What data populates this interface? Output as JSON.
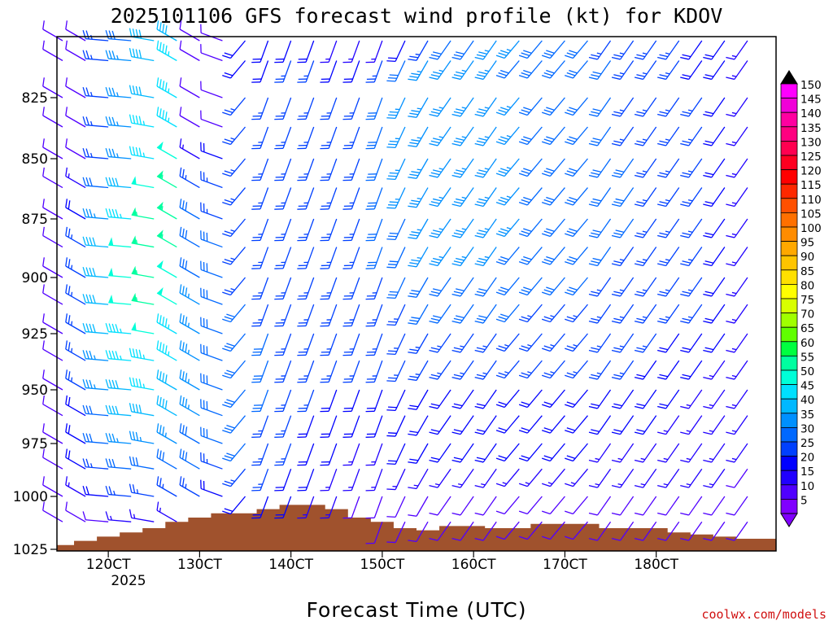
{
  "chart_data": {
    "type": "wind-barb-profile",
    "title": "2025101106 GFS forecast wind profile (kt) for KDOV",
    "xlabel": "Forecast Time (UTC)",
    "credit": "coolwx.com/models",
    "x_tick_labels": [
      "120CT",
      "130CT",
      "140CT",
      "150CT",
      "160CT",
      "170CT",
      "180CT"
    ],
    "x_year_label": "2025",
    "xlim_hours": [
      0,
      186
    ],
    "y_tick_labels": [
      "825",
      "850",
      "875",
      "900",
      "925",
      "950",
      "975",
      "1000",
      "1025"
    ],
    "y_pressure_levels_hPa": [
      805,
      812,
      825,
      837,
      850,
      862,
      875,
      887,
      900,
      912,
      925,
      937,
      950,
      962,
      975,
      987,
      1000,
      1012,
      1025
    ],
    "barb_time_hours": [
      0,
      6,
      12,
      18,
      24,
      30,
      36,
      42,
      48,
      54,
      60,
      66,
      72,
      78,
      84,
      90,
      96,
      102,
      108,
      114,
      120,
      126,
      132,
      138,
      144,
      150,
      156,
      162,
      168,
      174,
      180
    ],
    "time_ticks_hours": [
      12,
      36,
      60,
      84,
      108,
      132,
      156
    ],
    "colorbar": {
      "labels": [
        "150",
        "145",
        "140",
        "135",
        "130",
        "125",
        "120",
        "115",
        "110",
        "105",
        "100",
        "95",
        "90",
        "85",
        "80",
        "75",
        "70",
        "65",
        "60",
        "55",
        "50",
        "45",
        "40",
        "35",
        "30",
        "25",
        "20",
        "15",
        "10",
        "5"
      ],
      "colors": [
        "#ff00ff",
        "#f000d8",
        "#ff00a0",
        "#ff0080",
        "#ff0050",
        "#ff0020",
        "#ff0000",
        "#ff2800",
        "#ff5000",
        "#ff7000",
        "#ff8c00",
        "#ffa800",
        "#ffc400",
        "#ffe000",
        "#ffff00",
        "#d8ff00",
        "#a0ff00",
        "#60ff00",
        "#00ff40",
        "#00ffa0",
        "#00ffd8",
        "#00e0ff",
        "#00b8ff",
        "#0090ff",
        "#0068ff",
        "#0040ff",
        "#0000ff",
        "#2000ff",
        "#5000ff",
        "#8000ff"
      ]
    },
    "terrain_color": "#a0522d",
    "surface_pressure_hPa": [
      1023,
      1021,
      1019,
      1017,
      1015,
      1012,
      1010,
      1008,
      1008,
      1006,
      1004,
      1004,
      1006,
      1010,
      1012,
      1015,
      1016,
      1014,
      1014,
      1015,
      1015,
      1013,
      1013,
      1013,
      1015,
      1015,
      1015,
      1017,
      1018,
      1019,
      1020
    ],
    "wind_speed_kt": [
      [
        10,
        10,
        25,
        30,
        40,
        40,
        10,
        10,
        20,
        20,
        20,
        20,
        15,
        15,
        15,
        20,
        25,
        30,
        30,
        35,
        35,
        30,
        30,
        30,
        25,
        25,
        25,
        25,
        20,
        20,
        15
      ],
      [
        10,
        10,
        25,
        35,
        40,
        45,
        10,
        10,
        20,
        20,
        25,
        25,
        20,
        20,
        25,
        30,
        35,
        35,
        35,
        35,
        30,
        30,
        30,
        30,
        30,
        25,
        25,
        25,
        20,
        20,
        15
      ],
      [
        10,
        10,
        25,
        35,
        40,
        45,
        10,
        10,
        25,
        25,
        25,
        25,
        25,
        25,
        30,
        35,
        35,
        35,
        35,
        35,
        35,
        30,
        30,
        30,
        30,
        25,
        25,
        25,
        25,
        20,
        15
      ],
      [
        10,
        10,
        25,
        35,
        45,
        45,
        10,
        10,
        25,
        25,
        25,
        25,
        25,
        25,
        30,
        35,
        35,
        35,
        35,
        35,
        35,
        30,
        30,
        30,
        30,
        25,
        25,
        25,
        25,
        20,
        15
      ],
      [
        10,
        10,
        25,
        35,
        45,
        50,
        15,
        20,
        25,
        25,
        25,
        25,
        25,
        25,
        30,
        35,
        35,
        35,
        35,
        35,
        35,
        30,
        30,
        30,
        30,
        30,
        25,
        25,
        25,
        20,
        15
      ],
      [
        10,
        15,
        30,
        40,
        50,
        55,
        25,
        25,
        25,
        25,
        25,
        25,
        25,
        25,
        30,
        35,
        35,
        35,
        35,
        35,
        35,
        30,
        30,
        30,
        30,
        30,
        25,
        25,
        25,
        20,
        15
      ],
      [
        10,
        20,
        35,
        45,
        55,
        55,
        30,
        25,
        25,
        25,
        25,
        25,
        25,
        25,
        30,
        30,
        35,
        35,
        35,
        35,
        35,
        30,
        30,
        30,
        30,
        30,
        25,
        25,
        25,
        20,
        15
      ],
      [
        10,
        25,
        40,
        50,
        55,
        55,
        30,
        30,
        25,
        25,
        25,
        25,
        25,
        25,
        30,
        30,
        35,
        35,
        35,
        35,
        30,
        30,
        30,
        30,
        30,
        25,
        25,
        25,
        25,
        20,
        15
      ],
      [
        10,
        25,
        40,
        50,
        55,
        50,
        30,
        30,
        25,
        25,
        25,
        25,
        25,
        25,
        25,
        30,
        30,
        30,
        30,
        30,
        30,
        30,
        30,
        30,
        25,
        25,
        25,
        25,
        25,
        20,
        15
      ],
      [
        10,
        25,
        40,
        50,
        55,
        50,
        35,
        30,
        30,
        25,
        25,
        25,
        25,
        25,
        25,
        25,
        30,
        30,
        30,
        30,
        30,
        25,
        25,
        25,
        25,
        25,
        25,
        25,
        25,
        20,
        15
      ],
      [
        10,
        25,
        40,
        45,
        50,
        45,
        35,
        30,
        30,
        30,
        25,
        25,
        25,
        25,
        25,
        25,
        25,
        25,
        25,
        25,
        25,
        25,
        25,
        25,
        25,
        25,
        25,
        20,
        20,
        20,
        15
      ],
      [
        10,
        25,
        35,
        45,
        45,
        45,
        35,
        30,
        30,
        30,
        25,
        25,
        25,
        25,
        25,
        25,
        25,
        25,
        25,
        25,
        25,
        25,
        25,
        25,
        25,
        25,
        20,
        20,
        20,
        15,
        15
      ],
      [
        10,
        25,
        35,
        40,
        45,
        40,
        35,
        30,
        30,
        30,
        25,
        25,
        20,
        20,
        20,
        20,
        20,
        20,
        20,
        20,
        20,
        20,
        20,
        20,
        20,
        20,
        20,
        20,
        15,
        15,
        15
      ],
      [
        10,
        20,
        30,
        40,
        40,
        40,
        35,
        30,
        30,
        25,
        25,
        20,
        20,
        20,
        20,
        20,
        20,
        20,
        20,
        20,
        20,
        20,
        20,
        20,
        20,
        20,
        20,
        15,
        15,
        15,
        15
      ],
      [
        10,
        20,
        30,
        35,
        35,
        35,
        30,
        30,
        30,
        25,
        25,
        20,
        20,
        15,
        15,
        20,
        20,
        20,
        20,
        20,
        20,
        20,
        20,
        20,
        15,
        15,
        15,
        15,
        15,
        15,
        15
      ],
      [
        10,
        20,
        25,
        30,
        30,
        30,
        30,
        25,
        25,
        25,
        20,
        20,
        15,
        15,
        15,
        15,
        15,
        15,
        15,
        15,
        15,
        15,
        15,
        15,
        15,
        15,
        15,
        15,
        15,
        15,
        10
      ],
      [
        10,
        15,
        20,
        25,
        25,
        25,
        25,
        20,
        20,
        20,
        20,
        15,
        15,
        10,
        10,
        10,
        10,
        10,
        10,
        10,
        10,
        10,
        10,
        10,
        10,
        10,
        10,
        10,
        10,
        10,
        10
      ],
      [
        10,
        10,
        10,
        15,
        15,
        15,
        15,
        15,
        15,
        15,
        15,
        10,
        10,
        10,
        10,
        10,
        10,
        10,
        10,
        10,
        10,
        10,
        10,
        10,
        10,
        10,
        10,
        10,
        10,
        10,
        10
      ],
      [
        5,
        5,
        5,
        5,
        5,
        5,
        5,
        5,
        5,
        5,
        5,
        5,
        5,
        5,
        5,
        5,
        5,
        5,
        5,
        5,
        5,
        5,
        5,
        5,
        5,
        5,
        5,
        5,
        5,
        5,
        5
      ]
    ],
    "wind_dir_deg": [
      [
        300,
        300,
        275,
        275,
        280,
        300,
        300,
        290,
        220,
        200,
        200,
        200,
        200,
        200,
        200,
        205,
        210,
        215,
        215,
        215,
        220,
        220,
        220,
        220,
        215,
        215,
        215,
        215,
        215,
        215,
        215
      ],
      [
        300,
        300,
        275,
        275,
        280,
        300,
        300,
        290,
        220,
        200,
        200,
        200,
        200,
        200,
        200,
        205,
        210,
        215,
        215,
        215,
        220,
        220,
        220,
        220,
        215,
        215,
        215,
        215,
        215,
        215,
        215
      ],
      [
        300,
        300,
        275,
        275,
        280,
        300,
        300,
        290,
        220,
        200,
        200,
        200,
        200,
        200,
        200,
        205,
        210,
        215,
        215,
        215,
        220,
        220,
        220,
        220,
        215,
        215,
        215,
        215,
        215,
        215,
        215
      ],
      [
        300,
        300,
        275,
        275,
        280,
        300,
        300,
        290,
        220,
        200,
        200,
        200,
        200,
        200,
        200,
        205,
        210,
        215,
        215,
        215,
        220,
        220,
        220,
        220,
        215,
        215,
        215,
        215,
        215,
        215,
        215
      ],
      [
        300,
        300,
        275,
        275,
        280,
        300,
        300,
        290,
        220,
        200,
        200,
        200,
        200,
        200,
        200,
        205,
        210,
        215,
        215,
        215,
        220,
        220,
        220,
        220,
        215,
        215,
        215,
        215,
        215,
        215,
        215
      ],
      [
        300,
        300,
        275,
        275,
        280,
        300,
        300,
        290,
        220,
        200,
        200,
        200,
        200,
        200,
        200,
        205,
        210,
        215,
        215,
        215,
        220,
        220,
        220,
        220,
        215,
        215,
        215,
        215,
        215,
        215,
        215
      ],
      [
        300,
        300,
        275,
        275,
        280,
        300,
        300,
        290,
        220,
        200,
        200,
        200,
        200,
        200,
        200,
        205,
        210,
        215,
        215,
        215,
        220,
        220,
        220,
        220,
        215,
        215,
        215,
        215,
        215,
        215,
        215
      ],
      [
        300,
        300,
        275,
        275,
        280,
        300,
        300,
        290,
        220,
        200,
        200,
        200,
        200,
        200,
        200,
        205,
        210,
        215,
        215,
        215,
        220,
        220,
        220,
        220,
        215,
        215,
        215,
        215,
        215,
        215,
        215
      ],
      [
        300,
        300,
        275,
        275,
        280,
        300,
        300,
        290,
        220,
        200,
        200,
        200,
        200,
        200,
        200,
        205,
        210,
        215,
        215,
        215,
        220,
        220,
        220,
        220,
        215,
        215,
        215,
        215,
        215,
        215,
        215
      ],
      [
        300,
        300,
        275,
        275,
        280,
        300,
        300,
        290,
        220,
        200,
        200,
        200,
        200,
        200,
        200,
        205,
        210,
        215,
        215,
        215,
        220,
        220,
        220,
        220,
        215,
        215,
        215,
        215,
        215,
        215,
        215
      ],
      [
        300,
        300,
        275,
        275,
        280,
        300,
        300,
        290,
        220,
        200,
        200,
        200,
        200,
        200,
        200,
        205,
        210,
        215,
        215,
        215,
        220,
        220,
        220,
        220,
        215,
        215,
        215,
        215,
        215,
        215,
        215
      ],
      [
        300,
        300,
        275,
        275,
        280,
        300,
        300,
        290,
        220,
        200,
        200,
        200,
        200,
        200,
        200,
        205,
        210,
        215,
        215,
        215,
        220,
        220,
        220,
        220,
        215,
        215,
        215,
        215,
        215,
        215,
        215
      ],
      [
        300,
        300,
        275,
        275,
        280,
        300,
        300,
        290,
        220,
        200,
        200,
        200,
        200,
        200,
        200,
        205,
        210,
        215,
        215,
        215,
        220,
        220,
        220,
        220,
        215,
        215,
        215,
        215,
        215,
        215,
        215
      ],
      [
        300,
        300,
        275,
        275,
        280,
        300,
        300,
        290,
        220,
        200,
        200,
        200,
        200,
        200,
        200,
        205,
        210,
        215,
        215,
        215,
        220,
        220,
        220,
        220,
        215,
        215,
        215,
        215,
        215,
        215,
        215
      ],
      [
        300,
        300,
        275,
        275,
        280,
        300,
        300,
        290,
        220,
        200,
        200,
        200,
        200,
        200,
        200,
        205,
        210,
        215,
        215,
        215,
        220,
        220,
        220,
        220,
        215,
        215,
        215,
        215,
        215,
        215,
        215
      ],
      [
        300,
        300,
        275,
        275,
        280,
        300,
        300,
        290,
        220,
        200,
        200,
        200,
        200,
        200,
        200,
        205,
        210,
        215,
        215,
        215,
        220,
        220,
        220,
        220,
        215,
        215,
        215,
        215,
        215,
        215,
        215
      ],
      [
        300,
        300,
        275,
        275,
        280,
        300,
        300,
        290,
        220,
        200,
        200,
        200,
        200,
        200,
        200,
        205,
        210,
        215,
        215,
        215,
        220,
        220,
        220,
        220,
        215,
        215,
        215,
        215,
        215,
        215,
        215
      ],
      [
        300,
        300,
        275,
        275,
        280,
        300,
        300,
        290,
        220,
        200,
        200,
        200,
        200,
        200,
        200,
        205,
        210,
        215,
        215,
        215,
        220,
        220,
        220,
        220,
        215,
        215,
        215,
        215,
        215,
        215,
        215
      ],
      [
        300,
        300,
        275,
        275,
        280,
        300,
        300,
        290,
        220,
        200,
        200,
        200,
        200,
        200,
        200,
        205,
        210,
        215,
        215,
        215,
        220,
        220,
        220,
        220,
        215,
        215,
        215,
        215,
        215,
        215,
        215
      ]
    ]
  }
}
